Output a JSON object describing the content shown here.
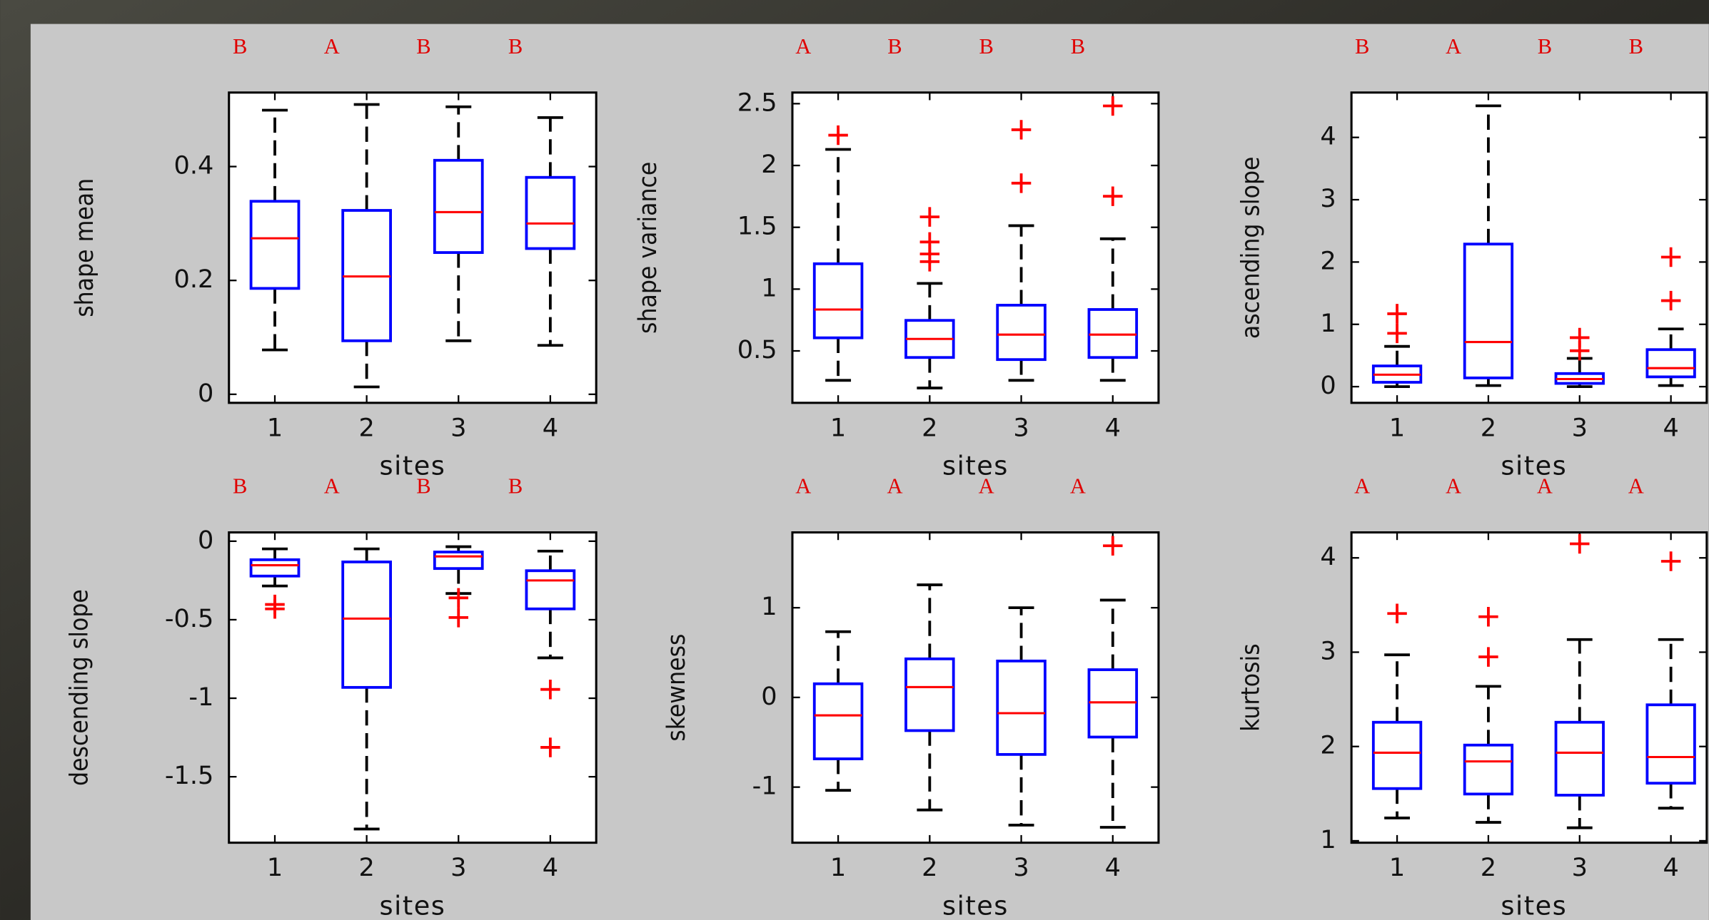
{
  "chart_data": [
    {
      "type": "box",
      "ylabel": "shape mean",
      "xlabel": "sites",
      "categories": [
        "1",
        "2",
        "3",
        "4"
      ],
      "letters": [
        "B",
        "A",
        "B",
        "B"
      ],
      "ylim": [
        -0.015,
        0.53
      ],
      "yticks": [
        0,
        0.2,
        0.4
      ],
      "box_color": "#0000ff",
      "median_color": "#ff0000",
      "whisker_color": "#000000",
      "outlier_color": "#ff0000",
      "boxes": [
        {
          "min": 0.078,
          "q1": 0.186,
          "median": 0.274,
          "q3": 0.339,
          "max": 0.499,
          "outliers": []
        },
        {
          "min": 0.013,
          "q1": 0.094,
          "median": 0.207,
          "q3": 0.323,
          "max": 0.509,
          "outliers": []
        },
        {
          "min": 0.094,
          "q1": 0.249,
          "median": 0.32,
          "q3": 0.411,
          "max": 0.505,
          "outliers": []
        },
        {
          "min": 0.086,
          "q1": 0.256,
          "median": 0.3,
          "q3": 0.381,
          "max": 0.486,
          "outliers": []
        }
      ]
    },
    {
      "type": "box",
      "ylabel": "shape variance",
      "xlabel": "sites",
      "categories": [
        "1",
        "2",
        "3",
        "4"
      ],
      "letters": [
        "A",
        "B",
        "B",
        "B"
      ],
      "ylim": [
        0.08,
        2.59
      ],
      "yticks": [
        0.5,
        1,
        1.5,
        2,
        2.5
      ],
      "box_color": "#0000ff",
      "median_color": "#ff0000",
      "whisker_color": "#000000",
      "outlier_color": "#ff0000",
      "boxes": [
        {
          "min": 0.262,
          "q1": 0.606,
          "median": 0.835,
          "q3": 1.205,
          "max": 2.13,
          "outliers": [
            2.245
          ]
        },
        {
          "min": 0.2,
          "q1": 0.447,
          "median": 0.597,
          "q3": 0.747,
          "max": 1.046,
          "outliers": [
            1.584,
            1.381,
            1.284,
            1.222
          ]
        },
        {
          "min": 0.262,
          "q1": 0.43,
          "median": 0.632,
          "q3": 0.87,
          "max": 1.513,
          "outliers": [
            2.289,
            1.857
          ]
        },
        {
          "min": 0.262,
          "q1": 0.447,
          "median": 0.632,
          "q3": 0.835,
          "max": 1.407,
          "outliers": [
            2.482,
            1.751
          ]
        }
      ]
    },
    {
      "type": "box",
      "ylabel": "ascending slope",
      "xlabel": "sites",
      "categories": [
        "1",
        "2",
        "3",
        "4"
      ],
      "letters": [
        "B",
        "A",
        "B",
        "B"
      ],
      "ylim": [
        -0.26,
        4.72
      ],
      "yticks": [
        0,
        1,
        2,
        3,
        4
      ],
      "box_color": "#0000ff",
      "median_color": "#ff0000",
      "whisker_color": "#000000",
      "outlier_color": "#ff0000",
      "boxes": [
        {
          "min": 0.0,
          "q1": 0.07,
          "median": 0.192,
          "q3": 0.332,
          "max": 0.646,
          "outliers": [
            1.17,
            0.856
          ]
        },
        {
          "min": 0.017,
          "q1": 0.14,
          "median": 0.716,
          "q3": 2.288,
          "max": 4.507,
          "outliers": []
        },
        {
          "min": 0.0,
          "q1": 0.052,
          "median": 0.122,
          "q3": 0.21,
          "max": 0.454,
          "outliers": [
            0.786,
            0.576
          ]
        },
        {
          "min": 0.017,
          "q1": 0.157,
          "median": 0.297,
          "q3": 0.594,
          "max": 0.926,
          "outliers": [
            2.079,
            1.38
          ]
        }
      ]
    },
    {
      "type": "box",
      "ylabel": "descending slope",
      "xlabel": "sites",
      "categories": [
        "1",
        "2",
        "3",
        "4"
      ],
      "letters": [
        "B",
        "A",
        "B",
        "B"
      ],
      "ylim": [
        -1.92,
        0.056
      ],
      "yticks": [
        0,
        -0.5,
        -1,
        -1.5
      ],
      "box_color": "#0000ff",
      "median_color": "#ff0000",
      "whisker_color": "#000000",
      "outlier_color": "#ff0000",
      "boxes": [
        {
          "min": -0.285,
          "q1": -0.222,
          "median": -0.153,
          "q3": -0.118,
          "max": -0.049,
          "outliers": [
            -0.403,
            -0.431
          ]
        },
        {
          "min": -1.833,
          "q1": -0.931,
          "median": -0.493,
          "q3": -0.132,
          "max": -0.049,
          "outliers": []
        },
        {
          "min": -0.333,
          "q1": -0.174,
          "median": -0.097,
          "q3": -0.069,
          "max": -0.035,
          "outliers": [
            -0.361,
            -0.486
          ]
        },
        {
          "min": -0.743,
          "q1": -0.431,
          "median": -0.25,
          "q3": -0.188,
          "max": -0.063,
          "outliers": [
            -0.944,
            -1.313
          ]
        }
      ]
    },
    {
      "type": "box",
      "ylabel": "skewness",
      "xlabel": "sites",
      "categories": [
        "1",
        "2",
        "3",
        "4"
      ],
      "letters": [
        "A",
        "A",
        "A",
        "A"
      ],
      "ylim": [
        -1.62,
        1.84
      ],
      "yticks": [
        -1,
        0,
        1
      ],
      "box_color": "#0000ff",
      "median_color": "#ff0000",
      "whisker_color": "#000000",
      "outlier_color": "#ff0000",
      "boxes": [
        {
          "min": -1.036,
          "q1": -0.685,
          "median": -0.2,
          "q3": 0.152,
          "max": 0.733,
          "outliers": []
        },
        {
          "min": -1.255,
          "q1": -0.37,
          "median": 0.115,
          "q3": 0.43,
          "max": 1.255,
          "outliers": []
        },
        {
          "min": -1.424,
          "q1": -0.636,
          "median": -0.176,
          "q3": 0.406,
          "max": 1.0,
          "outliers": []
        },
        {
          "min": -1.448,
          "q1": -0.442,
          "median": -0.055,
          "q3": 0.309,
          "max": 1.085,
          "outliers": [
            1.691
          ]
        }
      ]
    },
    {
      "type": "box",
      "ylabel": "kurtosis",
      "xlabel": "sites",
      "categories": [
        "1",
        "2",
        "3",
        "4"
      ],
      "letters": [
        "A",
        "A",
        "A",
        "A"
      ],
      "ylim": [
        0.98,
        4.27
      ],
      "yticks": [
        1,
        2,
        3,
        4
      ],
      "box_color": "#0000ff",
      "median_color": "#ff0000",
      "whisker_color": "#000000",
      "outlier_color": "#ff0000",
      "boxes": [
        {
          "min": 1.242,
          "q1": 1.554,
          "median": 1.934,
          "q3": 2.257,
          "max": 2.972,
          "outliers": [
            3.41
          ]
        },
        {
          "min": 1.196,
          "q1": 1.496,
          "median": 1.842,
          "q3": 2.015,
          "max": 2.638,
          "outliers": [
            3.376,
            2.95
          ]
        },
        {
          "min": 1.138,
          "q1": 1.484,
          "median": 1.934,
          "q3": 2.257,
          "max": 3.134,
          "outliers": [
            4.149
          ]
        },
        {
          "min": 1.346,
          "q1": 1.611,
          "median": 1.888,
          "q3": 2.442,
          "max": 3.134,
          "outliers": [
            3.964
          ]
        }
      ]
    }
  ]
}
